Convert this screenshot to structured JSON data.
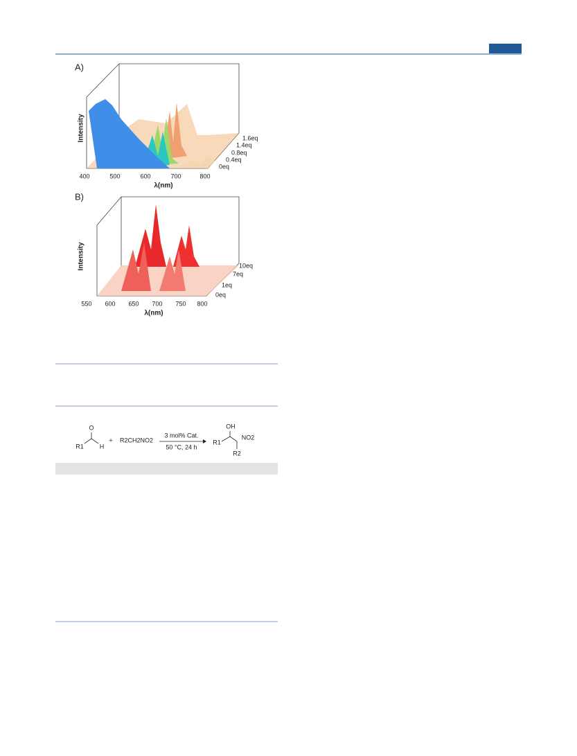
{
  "figure_a": {
    "panel_label": "A)",
    "y_label": "Intensity",
    "x_label": "λ(nm)",
    "x_ticks": [
      "400",
      "500",
      "600",
      "700",
      "800"
    ],
    "depth_labels": [
      "1.6eq",
      "1.4eq",
      "0.8eq",
      "0.4eq",
      "0eq"
    ]
  },
  "figure_b": {
    "panel_label": "B)",
    "y_label": "Intensity",
    "x_label": "λ(nm)",
    "x_ticks": [
      "550",
      "600",
      "650",
      "700",
      "750",
      "800"
    ],
    "depth_labels": [
      "10eq",
      "7eq",
      "1eq",
      "0eq"
    ]
  },
  "scheme": {
    "oxygen": "O",
    "r1": "R1",
    "h": "H",
    "plus": "+",
    "nitroalkane": "R2CH2NO2",
    "catalyst": "3 mol% Cat.",
    "conditions": "50 °C, 24 h",
    "hydroxyl": "OH",
    "product_r1": "R1",
    "nitro": "NO2",
    "product_r2": "R2"
  }
}
